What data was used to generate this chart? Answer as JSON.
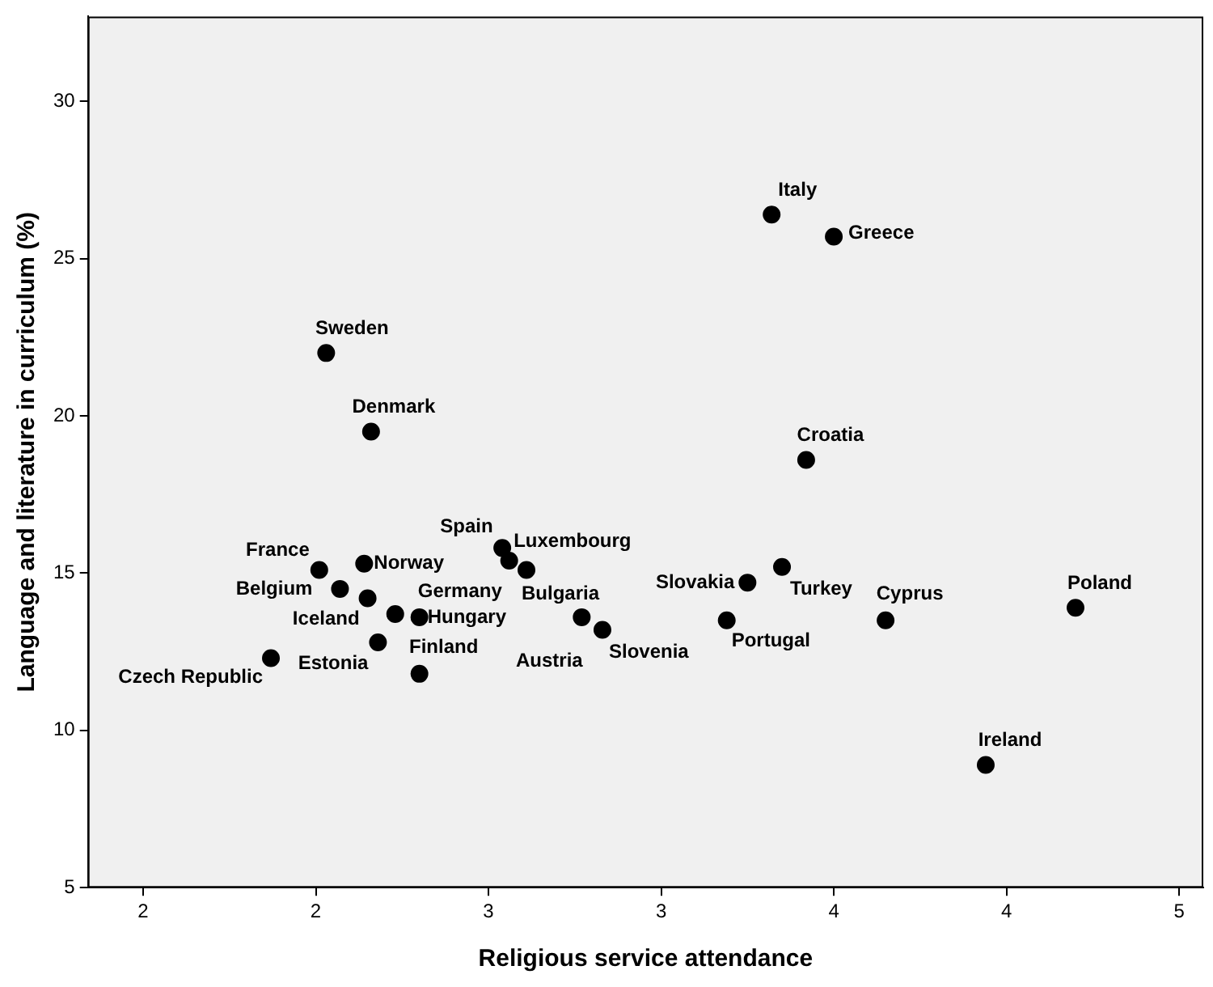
{
  "chart_data": {
    "type": "scatter",
    "xlabel": "Religious service attendance",
    "ylabel": "Language and literature in curriculum (%)",
    "x": [
      2.03,
      2.16,
      2.54,
      2.56,
      2.61,
      2.01,
      2.14,
      2.07,
      2.15,
      2.23,
      2.3,
      2.18,
      1.87,
      2.3,
      2.77,
      2.83,
      3.32,
      3.5,
      3.42,
      3.35,
      3.25,
      3.19,
      3.65,
      4.2,
      3.94
    ],
    "series": [
      {
        "color": "#000000",
        "values": [
          22.0,
          19.5,
          15.8,
          15.4,
          15.1,
          15.1,
          15.3,
          14.5,
          14.2,
          13.7,
          13.6,
          12.8,
          12.3,
          11.8,
          13.6,
          13.2,
          26.4,
          25.7,
          18.6,
          15.2,
          14.7,
          13.5,
          13.5,
          13.9,
          8.9
        ]
      }
    ],
    "marker": "circle",
    "grid": false,
    "legend": false,
    "xlim": [
      1.34,
      4.57
    ],
    "xticks": [
      {
        "value": 1.5,
        "label": "2"
      },
      {
        "value": 2,
        "label": "2"
      },
      {
        "value": 2.5,
        "label": "3"
      },
      {
        "value": 3,
        "label": "3"
      },
      {
        "value": 3.5,
        "label": "4"
      },
      {
        "value": 4,
        "label": "4"
      },
      {
        "value": 4.5,
        "label": "5"
      }
    ],
    "ylim": [
      5,
      32.7
    ],
    "yticks": [
      5,
      10,
      15,
      20,
      25,
      30
    ],
    "annotations": [
      {
        "text": "Sweden",
        "x": 2.03,
        "y": 22.0
      },
      {
        "text": "Denmark",
        "x": 2.16,
        "y": 19.5
      },
      {
        "text": "Luxembourg",
        "x": 2.54,
        "y": 15.8
      },
      {
        "text": "Spain",
        "x": 2.56,
        "y": 15.4
      },
      {
        "text": "Bulgaria",
        "x": 2.61,
        "y": 15.1
      },
      {
        "text": "France",
        "x": 2.01,
        "y": 15.1
      },
      {
        "text": "Norway",
        "x": 2.14,
        "y": 15.3
      },
      {
        "text": "Belgium",
        "x": 2.07,
        "y": 14.5
      },
      {
        "text": "Iceland",
        "x": 2.15,
        "y": 14.2
      },
      {
        "text": "Germany",
        "x": 2.23,
        "y": 13.7
      },
      {
        "text": "Hungary",
        "x": 2.3,
        "y": 13.6
      },
      {
        "text": "Estonia",
        "x": 2.18,
        "y": 12.8
      },
      {
        "text": "Czech Republic",
        "x": 1.87,
        "y": 12.3
      },
      {
        "text": "Finland",
        "x": 2.3,
        "y": 11.8
      },
      {
        "text": "Austria",
        "x": 2.77,
        "y": 13.6
      },
      {
        "text": "Slovenia",
        "x": 2.83,
        "y": 13.2
      },
      {
        "text": "Italy",
        "x": 3.32,
        "y": 26.4
      },
      {
        "text": "Greece",
        "x": 3.5,
        "y": 25.7
      },
      {
        "text": "Croatia",
        "x": 3.42,
        "y": 18.6
      },
      {
        "text": "Turkey",
        "x": 3.35,
        "y": 15.2
      },
      {
        "text": "Slovakia",
        "x": 3.25,
        "y": 14.7
      },
      {
        "text": "Portugal",
        "x": 3.19,
        "y": 13.5
      },
      {
        "text": "Cyprus",
        "x": 3.65,
        "y": 13.5
      },
      {
        "text": "Poland",
        "x": 4.2,
        "y": 13.9
      },
      {
        "text": "Ireland",
        "x": 3.94,
        "y": 8.9
      }
    ]
  }
}
